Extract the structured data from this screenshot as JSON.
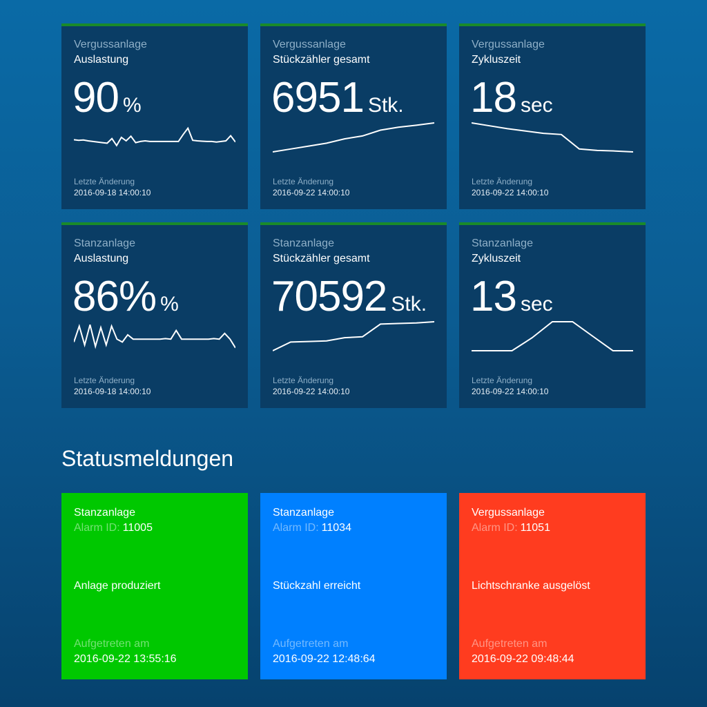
{
  "tiles": [
    {
      "plant": "Vergussanlage",
      "metric": "Auslastung",
      "value": "90",
      "unit": "%",
      "changed_label": "Letzte Änderung",
      "changed_date": "2016-09-18 14:00:10",
      "sparkline": [
        0.42,
        0.4,
        0.41,
        0.38,
        0.36,
        0.34,
        0.32,
        0.3,
        0.46,
        0.22,
        0.5,
        0.38,
        0.54,
        0.32,
        0.36,
        0.38,
        0.36,
        0.36,
        0.36,
        0.36,
        0.36,
        0.36,
        0.36,
        0.6,
        0.82,
        0.4,
        0.38,
        0.37,
        0.36,
        0.36,
        0.34,
        0.36,
        0.38,
        0.56,
        0.34
      ]
    },
    {
      "plant": "Vergussanlage",
      "metric": "Stückzähler gesamt",
      "value": "6951",
      "unit": "Stk.",
      "changed_label": "Letzte Änderung",
      "changed_date": "2016-09-22 14:00:10",
      "sparkline": [
        0.0,
        0.1,
        0.2,
        0.3,
        0.45,
        0.55,
        0.75,
        0.85,
        0.92,
        1.0
      ]
    },
    {
      "plant": "Vergussanlage",
      "metric": "Zykluszeit",
      "value": "18",
      "unit": "sec",
      "changed_label": "Letzte Änderung",
      "changed_date": "2016-09-22 14:00:10",
      "sparkline": [
        1.0,
        0.9,
        0.8,
        0.72,
        0.64,
        0.6,
        0.1,
        0.05,
        0.03,
        0.0
      ]
    },
    {
      "plant": "Stanzanlage",
      "metric": "Auslastung",
      "value": "86%",
      "unit": "%",
      "changed_label": "Letzte Änderung",
      "changed_date": "2016-09-18 14:00:10",
      "sparkline": [
        0.3,
        0.85,
        0.2,
        0.9,
        0.15,
        0.8,
        0.2,
        0.85,
        0.4,
        0.3,
        0.55,
        0.4,
        0.4,
        0.4,
        0.4,
        0.4,
        0.4,
        0.42,
        0.4,
        0.7,
        0.4,
        0.4,
        0.4,
        0.4,
        0.4,
        0.4,
        0.42,
        0.4,
        0.6,
        0.4,
        0.1
      ]
    },
    {
      "plant": "Stanzanlage",
      "metric": "Stückzähler gesamt",
      "value": "70592",
      "unit": "Stk.",
      "changed_label": "Letzte Änderung",
      "changed_date": "2016-09-22 14:00:10",
      "sparkline": [
        0.0,
        0.3,
        0.32,
        0.34,
        0.45,
        0.48,
        0.92,
        0.94,
        0.96,
        1.0
      ]
    },
    {
      "plant": "Stanzanlage",
      "metric": "Zykluszeit",
      "value": "13",
      "unit": "sec",
      "changed_label": "Letzte Änderung",
      "changed_date": "2016-09-22 14:00:10",
      "sparkline": [
        0.0,
        0.0,
        0.0,
        0.45,
        1.0,
        1.0,
        0.5,
        0.0,
        0.0
      ]
    }
  ],
  "section_title": "Statusmeldungen",
  "alarms": [
    {
      "plant": "Stanzanlage",
      "id_label": "Alarm ID:",
      "id": "11005",
      "message": "Anlage produziert",
      "occurred_label": "Aufgetreten am",
      "occurred_date": "2016-09-22 13:55:16",
      "color": "#00c800"
    },
    {
      "plant": "Stanzanlage",
      "id_label": "Alarm ID:",
      "id": "11034",
      "message": "Stückzahl erreicht",
      "occurred_label": "Aufgetreten am",
      "occurred_date": "2016-09-22 12:48:64",
      "color": "#0080ff"
    },
    {
      "plant": "Vergussanlage",
      "id_label": "Alarm ID:",
      "id": "11051",
      "message": "Lichtschranke ausgelöst",
      "occurred_label": "Aufgetreten am",
      "occurred_date": "2016-09-22 09:48:44",
      "color": "#ff3c1f"
    }
  ],
  "colors": {
    "tile_background": "#0a3d65",
    "tile_accent": "#1a8a2a",
    "secondary_text": "#8fb0c8"
  }
}
